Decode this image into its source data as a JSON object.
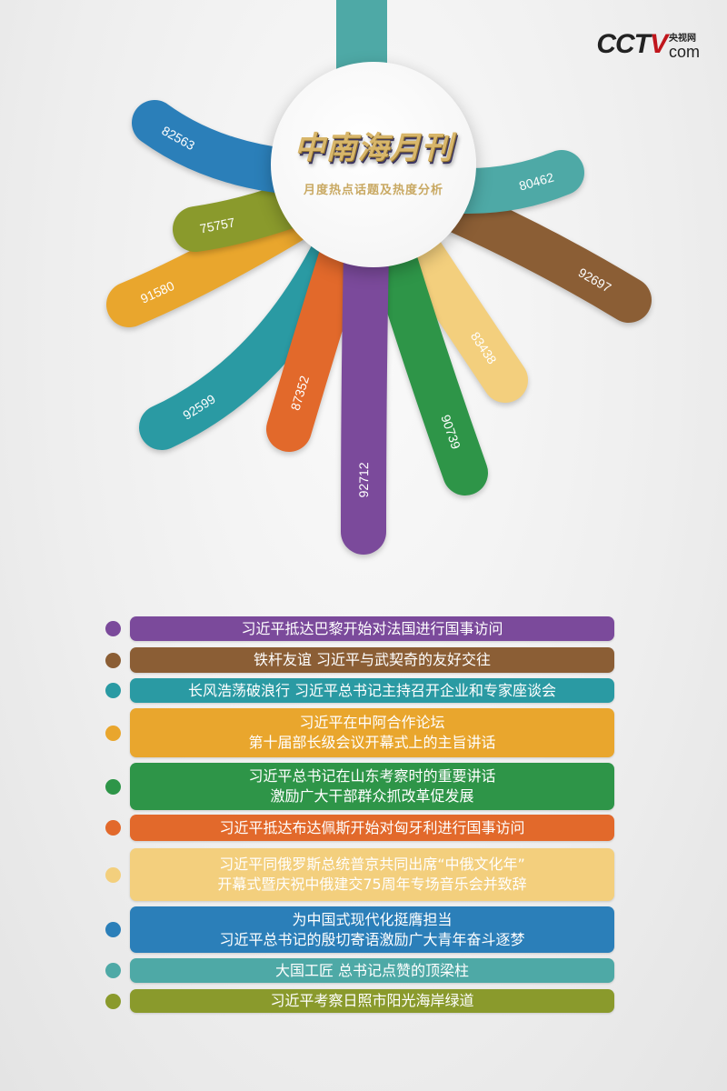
{
  "logo": {
    "main": "CCTV",
    "cn": "央视网",
    "com": "com"
  },
  "hub": {
    "title": "中南海月刊",
    "subtitle": "月度热点话题及热度分析"
  },
  "chart_data": {
    "type": "radial-bar",
    "values": [
      92712,
      92697,
      92599,
      91580,
      90739,
      87352,
      83438,
      82563,
      80462,
      75757
    ],
    "colors": [
      "#7b4a9b",
      "#8b5e35",
      "#2a9aa3",
      "#e9a62d",
      "#2e9548",
      "#e2692b",
      "#f3cf7d",
      "#2b7fb9",
      "#4ea9a6",
      "#8a9a2c"
    ]
  },
  "topics": [
    {
      "lines": [
        "习近平抵达巴黎开始对法国进行国事访问"
      ]
    },
    {
      "lines": [
        "铁杆友谊 习近平与武契奇的友好交往"
      ]
    },
    {
      "lines": [
        "长风浩荡破浪行 习近平总书记主持召开企业和专家座谈会"
      ]
    },
    {
      "lines": [
        "习近平在中阿合作论坛",
        "第十届部长级会议开幕式上的主旨讲话"
      ]
    },
    {
      "lines": [
        "习近平总书记在山东考察时的重要讲话",
        "激励广大干部群众抓改革促发展"
      ]
    },
    {
      "lines": [
        "习近平抵达布达佩斯开始对匈牙利进行国事访问"
      ]
    },
    {
      "lines": [
        "习近平同俄罗斯总统普京共同出席“中俄文化年”",
        "开幕式暨庆祝中俄建交75周年专场音乐会并致辞"
      ]
    },
    {
      "lines": [
        "为中国式现代化挺膺担当",
        "习近平总书记的殷切寄语激励广大青年奋斗逐梦"
      ]
    },
    {
      "lines": [
        "大国工匠 总书记点赞的顶梁柱"
      ]
    },
    {
      "lines": [
        "习近平考察日照市阳光海岸绿道"
      ]
    }
  ]
}
